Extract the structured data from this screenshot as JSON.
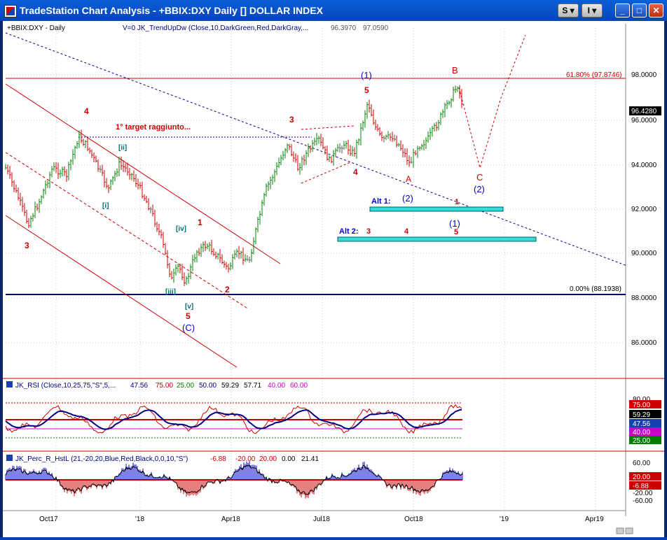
{
  "window": {
    "title": "TradeStation Chart Analysis - +BBIX:DXY Daily [] DOLLAR INDEX",
    "buttons": {
      "s_label": "S ▾",
      "i_label": "I ▾",
      "min_label": "_",
      "max_label": "□",
      "close_label": "✕"
    }
  },
  "header": {
    "symbol": "+BBIX:DXY - Daily",
    "indicator": "V=0  JK_TrendUpDw (Close,10,DarkGreen,Red,DarkGray,...",
    "v1": "96.3970",
    "v2": "97.0590"
  },
  "price_axis": {
    "ticks": [
      "98.0000",
      "96.0000",
      "94.0000",
      "92.0000",
      "90.0000",
      "88.0000",
      "86.0000"
    ],
    "last_price": "96.4280"
  },
  "fib": {
    "top": "61.80% (97.8746)",
    "bottom": "0.00% (88.1938)"
  },
  "annotations": {
    "target": "1° target raggiunto...",
    "alt1": "Alt 1:",
    "alt2": "Alt 2:",
    "waves": {
      "w3_left": "3",
      "w4_left": "4",
      "w_ii": "[ii]",
      "w_i": "[i]",
      "w_iv": "[iv]",
      "w1_mid": "1",
      "w_iii": "[iii]",
      "w_v": "[v]",
      "w5_bottom": "5",
      "wC_bottom": "(C)",
      "w2_mid": "2",
      "w3_mid": "3",
      "w4_mid": "4",
      "w1_top": "(1)",
      "w5_top": "5",
      "wA": "A",
      "w2_blue": "(2)",
      "wB": "B",
      "wC_red": "C",
      "w2_right": "(2)",
      "w1_alt1": "1",
      "alt2_3": "3",
      "alt2_4": "4",
      "alt2_1": "(1)",
      "alt2_5": "5"
    }
  },
  "rsi": {
    "label": "JK_RSI (Close,10,25,75,\"S\",5,...",
    "values": [
      "47.56",
      "75.00",
      "25.00",
      "50.00",
      "59.29",
      "57.71",
      "40.00",
      "60.00"
    ],
    "axis": [
      "80.00",
      "75.00",
      "59.29",
      "47.56",
      "40.00",
      "25.00"
    ]
  },
  "perc": {
    "label": "JK_Perc_R_HstL (21,-20,20,Blue,Red,Black,0,0,10,\"S\")",
    "values": [
      "-6.88",
      "-20.00",
      "20.00",
      "0.00",
      "21.41"
    ],
    "axis": [
      "60.00",
      "20.00",
      "-6.88",
      "-20.00",
      "-60.00"
    ]
  },
  "time_axis": [
    "Oct17",
    "'18",
    "Apr18",
    "Jul18",
    "Oct18",
    "'19",
    "Apr19"
  ],
  "colors": {
    "up": "#008000",
    "down": "#cc0000",
    "wave_red": "#cc0000",
    "wave_blue": "#0000cc",
    "cyan": "#33dddd"
  }
}
